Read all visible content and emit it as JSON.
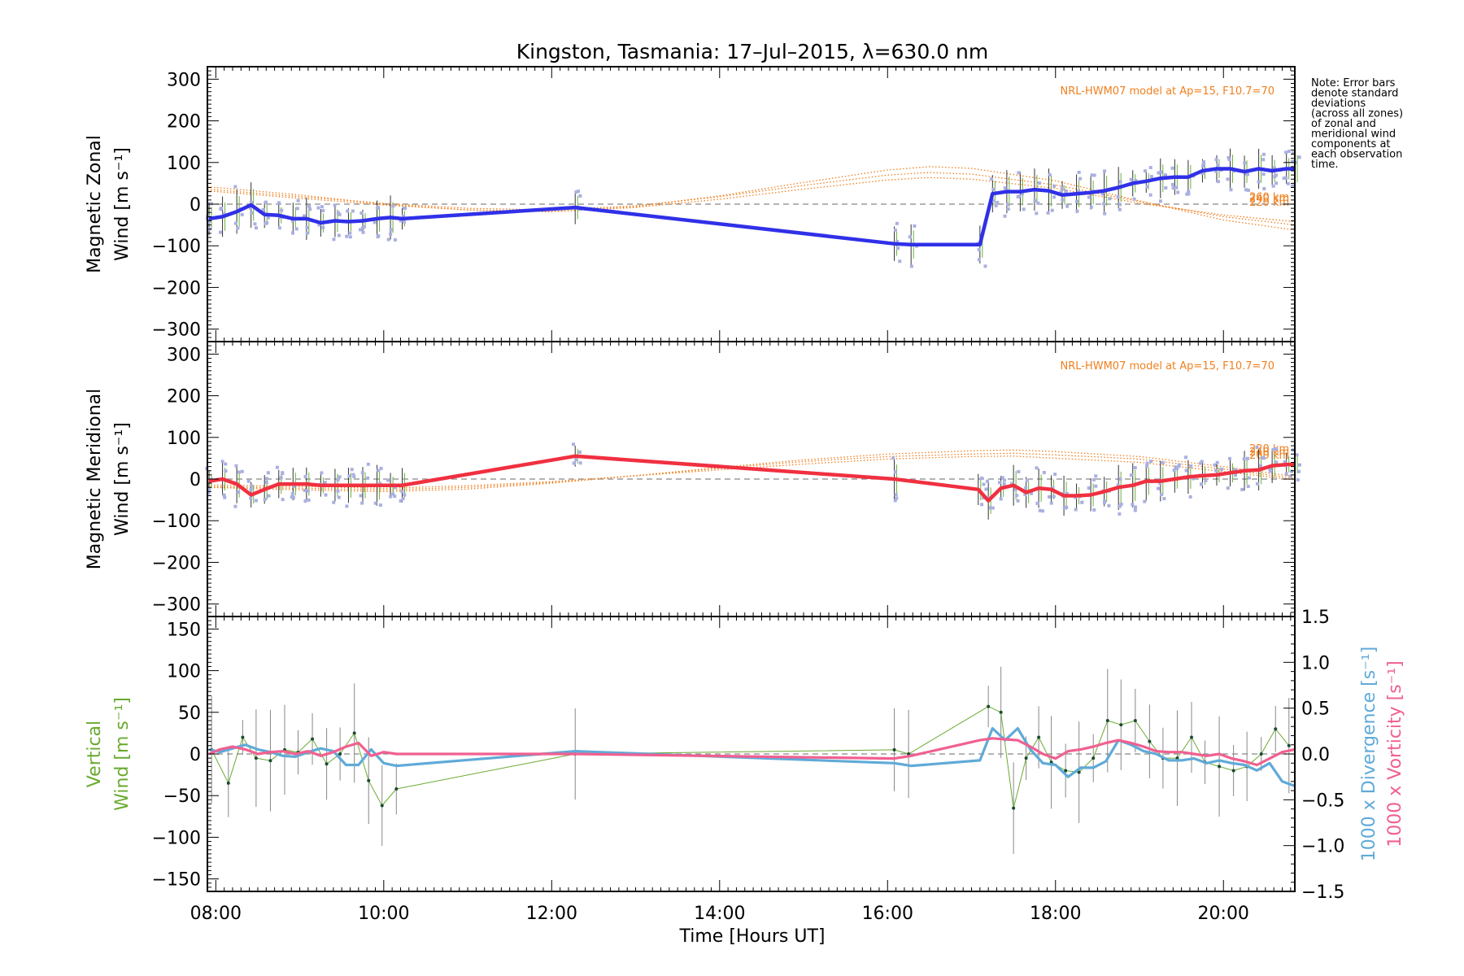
{
  "title": "Kingston, Tasmania: 17–Jul–2015, λ=630.0 nm",
  "xlabel": "Time [Hours UT]",
  "note_lines": [
    "Note: Error bars",
    "denote standard",
    "deviations",
    "(across all zones)",
    "of zonal and",
    "meridional wind",
    "components at",
    "each observation",
    "time."
  ],
  "colors": {
    "zonal": "#3030e8",
    "meridional": "#f03040",
    "vertical": "#6aaa30",
    "divergence": "#60aad8",
    "vorticity": "#f06090",
    "model": "#f08020",
    "scatter": "#aab0e0",
    "zero": "#888888"
  },
  "chart_data": [
    {
      "type": "line",
      "id": "zonal",
      "ylabel_lines": [
        "Magnetic Zonal",
        "Wind [m s⁻¹]"
      ],
      "xlim": [
        7.9,
        20.85
      ],
      "ylim": [
        -330,
        330
      ],
      "yticks": [
        -300,
        -200,
        -100,
        0,
        100,
        200,
        300
      ],
      "ytick_labels": [
        "−300",
        "−200",
        "−100",
        "0",
        "100",
        "200",
        "300"
      ],
      "xticks": [
        8,
        10,
        12,
        14,
        16,
        18,
        20
      ],
      "model_label": "NRL-HWM07 model at Ap=15, F10.7=70",
      "model_altitudes": [
        "220 km",
        "240 km",
        "260 km"
      ],
      "model_curves": {
        "x": [
          7.9,
          9,
          10,
          11,
          12,
          13,
          14,
          15,
          16,
          16.5,
          17,
          18,
          19,
          20,
          20.85
        ],
        "y": [
          [
            42,
            22,
            0,
            -14,
            -18,
            -6,
            20,
            52,
            82,
            90,
            86,
            56,
            8,
            -38,
            -62
          ],
          [
            36,
            18,
            2,
            -10,
            -14,
            -4,
            18,
            45,
            70,
            76,
            72,
            46,
            6,
            -30,
            -50
          ],
          [
            32,
            14,
            -2,
            -14,
            -18,
            -8,
            12,
            36,
            58,
            64,
            60,
            38,
            2,
            -26,
            -42
          ]
        ]
      },
      "series": [
        {
          "name": "Magnetic Zonal Wind",
          "x": [
            7.92,
            8.08,
            8.25,
            8.42,
            8.58,
            8.75,
            8.92,
            9.08,
            9.25,
            9.42,
            9.58,
            9.75,
            9.92,
            10.08,
            10.22,
            12.28,
            16.08,
            16.28,
            17.1,
            17.25,
            17.42,
            17.58,
            17.75,
            17.92,
            18.08,
            18.25,
            18.42,
            18.58,
            18.75,
            18.92,
            19.08,
            19.25,
            19.42,
            19.58,
            19.75,
            19.92,
            20.08,
            20.25,
            20.42,
            20.58,
            20.75,
            20.85
          ],
          "y": [
            -35,
            -30,
            -18,
            -2,
            -25,
            -27,
            -35,
            -35,
            -45,
            -40,
            -42,
            -40,
            -35,
            -32,
            -35,
            -8,
            -95,
            -97,
            -97,
            25,
            30,
            30,
            35,
            32,
            22,
            25,
            28,
            32,
            40,
            50,
            55,
            62,
            65,
            65,
            80,
            85,
            85,
            78,
            85,
            80,
            85,
            85
          ]
        }
      ]
    },
    {
      "type": "line",
      "id": "meridional",
      "ylabel_lines": [
        "Magnetic Meridional",
        "Wind [m s⁻¹]"
      ],
      "xlim": [
        7.9,
        20.85
      ],
      "ylim": [
        -330,
        330
      ],
      "yticks": [
        -300,
        -200,
        -100,
        0,
        100,
        200,
        300
      ],
      "ytick_labels": [
        "−300",
        "−200",
        "−100",
        "0",
        "100",
        "200",
        "300"
      ],
      "xticks": [
        8,
        10,
        12,
        14,
        16,
        18,
        20
      ],
      "model_label": "NRL-HWM07 model at Ap=15, F10.7=70",
      "model_altitudes": [
        "220 km",
        "240 km",
        "260 km"
      ],
      "model_curves": {
        "x": [
          7.9,
          9,
          10,
          11,
          12,
          13,
          14,
          15,
          16,
          17,
          17.5,
          18,
          19,
          20,
          20.85
        ],
        "y": [
          [
            -20,
            -26,
            -30,
            -24,
            -10,
            8,
            28,
            46,
            60,
            68,
            70,
            66,
            54,
            30,
            6
          ],
          [
            -18,
            -22,
            -26,
            -20,
            -8,
            8,
            26,
            42,
            54,
            60,
            62,
            58,
            48,
            24,
            2
          ],
          [
            -14,
            -18,
            -22,
            -16,
            -6,
            8,
            22,
            36,
            48,
            54,
            55,
            50,
            40,
            18,
            -2
          ]
        ]
      },
      "series": [
        {
          "name": "Magnetic Meridional Wind",
          "x": [
            7.92,
            8.08,
            8.25,
            8.42,
            8.58,
            8.75,
            8.92,
            9.08,
            9.25,
            9.42,
            9.58,
            9.75,
            9.92,
            10.08,
            10.22,
            12.28,
            16.08,
            17.08,
            17.2,
            17.35,
            17.5,
            17.65,
            17.8,
            17.95,
            18.1,
            18.25,
            18.42,
            18.58,
            18.75,
            18.92,
            19.08,
            19.25,
            19.42,
            19.58,
            19.75,
            19.92,
            20.08,
            20.25,
            20.42,
            20.58,
            20.75,
            20.85
          ],
          "y": [
            -5,
            0,
            -12,
            -38,
            -25,
            -12,
            -12,
            -12,
            -15,
            -15,
            -15,
            -15,
            -15,
            -15,
            -15,
            55,
            0,
            -25,
            -52,
            -22,
            -15,
            -32,
            -22,
            -25,
            -40,
            -40,
            -38,
            -30,
            -20,
            -15,
            -5,
            -5,
            0,
            5,
            8,
            10,
            15,
            20,
            22,
            32,
            35,
            35
          ]
        }
      ]
    },
    {
      "type": "line",
      "id": "vertical",
      "ylabel_left_lines": [
        "Vertical",
        "Wind [m s⁻¹]"
      ],
      "ylabel_right_lines": [
        "1000 x Divergence [s⁻¹]",
        "1000 x Vorticity [s⁻¹]"
      ],
      "xlim": [
        7.9,
        20.85
      ],
      "ylim": [
        -165,
        165
      ],
      "yticks": [
        -150,
        -100,
        -50,
        0,
        50,
        100,
        150
      ],
      "ytick_labels": [
        "−150",
        "−100",
        "−50",
        "0",
        "50",
        "100",
        "150"
      ],
      "ylim_right": [
        -1.5,
        1.5
      ],
      "yticks_right": [
        -1.5,
        -1.0,
        -0.5,
        0.0,
        0.5,
        1.0,
        1.5
      ],
      "ytick_labels_right": [
        "−1.5",
        "−1.0",
        "−0.5",
        "0.0",
        "0.5",
        "1.0",
        "1.5"
      ],
      "xticks": [
        8,
        10,
        12,
        14,
        16,
        18,
        20
      ],
      "xtick_labels": [
        "08:00",
        "10:00",
        "12:00",
        "14:00",
        "16:00",
        "18:00",
        "20:00"
      ],
      "series": [
        {
          "name": "Vertical Wind",
          "axis": "left",
          "x": [
            7.95,
            8.15,
            8.32,
            8.48,
            8.65,
            8.82,
            8.98,
            9.15,
            9.32,
            9.48,
            9.65,
            9.82,
            9.98,
            10.15,
            12.28,
            16.08,
            16.25,
            17.2,
            17.35,
            17.5,
            17.65,
            17.8,
            17.95,
            18.12,
            18.28,
            18.45,
            18.62,
            18.78,
            18.95,
            19.12,
            19.28,
            19.45,
            19.62,
            19.78,
            19.95,
            20.12,
            20.28,
            20.45,
            20.62,
            20.78
          ],
          "y": [
            5,
            -35,
            20,
            -5,
            -8,
            5,
            2,
            18,
            -12,
            0,
            25,
            -32,
            -62,
            -42,
            0,
            5,
            0,
            57,
            50,
            -65,
            -5,
            20,
            -10,
            -20,
            -22,
            -5,
            40,
            35,
            40,
            15,
            -5,
            -5,
            20,
            -10,
            -15,
            -20,
            -15,
            0,
            30,
            10
          ]
        },
        {
          "name": "1000 x Divergence",
          "axis": "right",
          "x": [
            7.92,
            8.05,
            8.2,
            8.35,
            8.5,
            8.65,
            8.8,
            8.95,
            9.1,
            9.25,
            9.4,
            9.55,
            9.7,
            9.85,
            10.0,
            10.15,
            12.28,
            16.08,
            16.28,
            17.1,
            17.25,
            17.4,
            17.55,
            17.7,
            17.85,
            18.0,
            18.15,
            18.3,
            18.45,
            18.6,
            18.75,
            18.9,
            19.05,
            19.2,
            19.35,
            19.5,
            19.65,
            19.8,
            19.95,
            20.1,
            20.25,
            20.4,
            20.55,
            20.7,
            20.85
          ],
          "y": [
            0.05,
            0.02,
            0.06,
            0.1,
            0.05,
            0.02,
            -0.02,
            -0.03,
            0.02,
            0.06,
            0.03,
            -0.12,
            -0.12,
            0.05,
            -0.1,
            -0.13,
            0.03,
            -0.1,
            -0.13,
            -0.07,
            0.28,
            0.15,
            0.28,
            0.05,
            -0.1,
            -0.12,
            -0.25,
            -0.15,
            -0.15,
            -0.08,
            0.15,
            0.1,
            0.03,
            0.0,
            -0.07,
            -0.07,
            -0.05,
            -0.1,
            -0.07,
            -0.1,
            -0.12,
            -0.18,
            -0.1,
            -0.3,
            -0.35
          ]
        },
        {
          "name": "1000 x Vorticity",
          "axis": "right",
          "x": [
            7.92,
            8.05,
            8.2,
            8.35,
            8.5,
            8.65,
            8.8,
            8.95,
            9.1,
            9.25,
            9.4,
            9.55,
            9.7,
            9.85,
            10.0,
            10.15,
            12.28,
            16.08,
            16.28,
            17.1,
            17.25,
            17.4,
            17.55,
            17.7,
            17.85,
            18.0,
            18.15,
            18.3,
            18.45,
            18.6,
            18.75,
            18.9,
            19.05,
            19.2,
            19.35,
            19.5,
            19.65,
            19.8,
            19.95,
            20.1,
            20.25,
            20.4,
            20.55,
            20.7,
            20.85
          ],
          "y": [
            0.0,
            0.05,
            0.08,
            0.05,
            0.0,
            0.02,
            0.03,
            0.0,
            0.03,
            -0.02,
            0.02,
            0.08,
            0.12,
            -0.02,
            0.02,
            0.0,
            0.0,
            -0.05,
            -0.02,
            0.15,
            0.17,
            0.16,
            0.15,
            0.08,
            0.0,
            -0.05,
            0.03,
            0.05,
            0.08,
            0.12,
            0.15,
            0.12,
            0.08,
            0.03,
            0.02,
            0.02,
            0.0,
            -0.02,
            0.0,
            -0.05,
            -0.08,
            -0.12,
            -0.05,
            0.02,
            0.05
          ]
        }
      ]
    }
  ]
}
